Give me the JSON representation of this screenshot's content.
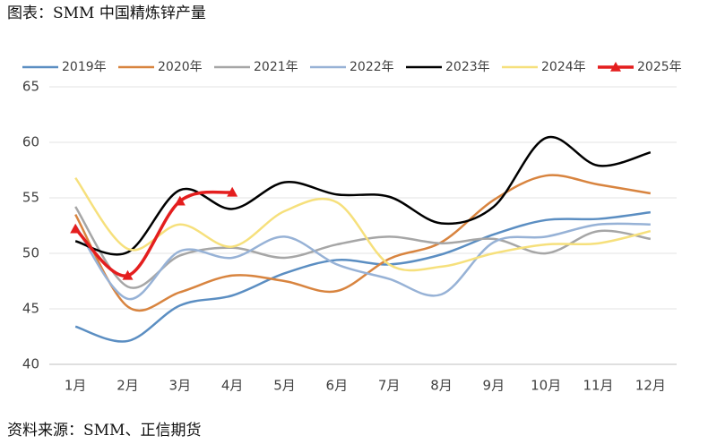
{
  "chart_data": {
    "type": "line",
    "title": "图表：SMM 中国精炼锌产量",
    "source": "资料来源：SMM、正信期货",
    "categories": [
      "1月",
      "2月",
      "3月",
      "4月",
      "5月",
      "6月",
      "7月",
      "8月",
      "9月",
      "10月",
      "11月",
      "12月"
    ],
    "ylim": [
      40,
      65
    ],
    "yticks": [
      40,
      45,
      50,
      55,
      60,
      65
    ],
    "grid": true,
    "legend": "top",
    "series": [
      {
        "name": "2019年",
        "color": "#5b8ec2",
        "values": [
          43.4,
          42.1,
          45.3,
          46.2,
          48.2,
          49.4,
          49.0,
          49.9,
          51.7,
          53.0,
          53.1,
          53.7
        ]
      },
      {
        "name": "2020年",
        "color": "#d8843f",
        "values": [
          53.5,
          45.2,
          46.5,
          48.0,
          47.5,
          46.6,
          49.5,
          51.0,
          54.8,
          57.0,
          56.2,
          55.4
        ]
      },
      {
        "name": "2021年",
        "color": "#a6a6a6",
        "values": [
          54.2,
          47.0,
          49.8,
          50.5,
          49.6,
          50.8,
          51.5,
          50.9,
          51.3,
          50.0,
          52.0,
          51.3
        ]
      },
      {
        "name": "2022年",
        "color": "#97b2d6",
        "values": [
          52.5,
          45.9,
          50.2,
          49.6,
          51.5,
          49.0,
          47.7,
          46.3,
          51.0,
          51.5,
          52.6,
          52.6
        ]
      },
      {
        "name": "2023年",
        "color": "#000000",
        "values": [
          51.1,
          50.1,
          55.7,
          54.0,
          56.4,
          55.3,
          55.1,
          52.7,
          54.2,
          60.4,
          57.9,
          59.1
        ]
      },
      {
        "name": "2024年",
        "color": "#f6e07c",
        "values": [
          56.8,
          50.4,
          52.6,
          50.6,
          53.8,
          54.6,
          49.0,
          48.8,
          50.0,
          50.8,
          50.9,
          52.0
        ]
      },
      {
        "name": "2025年",
        "color": "#e41e1e",
        "marker": "triangle",
        "values": [
          52.2,
          48.0,
          54.7,
          55.5,
          null,
          null,
          null,
          null,
          null,
          null,
          null,
          null
        ]
      }
    ]
  }
}
